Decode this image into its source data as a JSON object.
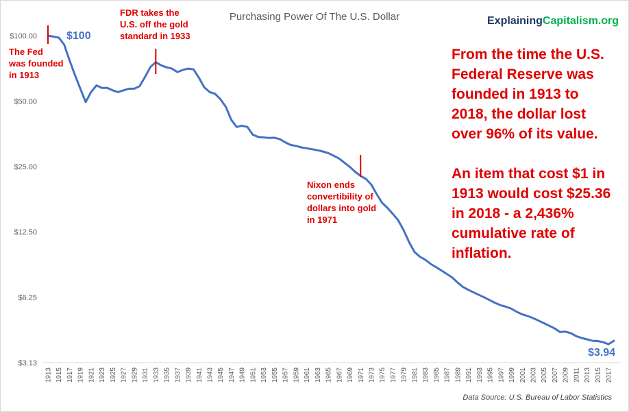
{
  "chart_data": {
    "type": "line",
    "title": "Purchasing Power Of The U.S. Dollar",
    "xlabel": "",
    "ylabel": "",
    "y_scale": "log2",
    "ylim": [
      3.13,
      125
    ],
    "y_ticks": [
      "$100.00",
      "$50.00",
      "$25.00",
      "$12.50",
      "$6.25",
      "$3.13"
    ],
    "y_tick_values": [
      100,
      50,
      25,
      12.5,
      6.25,
      3.125
    ],
    "grid": false,
    "series": [
      {
        "color": "#4472c4",
        "x": [
          1913,
          1914,
          1915,
          1916,
          1917,
          1918,
          1919,
          1920,
          1921,
          1922,
          1923,
          1924,
          1925,
          1926,
          1927,
          1928,
          1929,
          1930,
          1931,
          1932,
          1933,
          1934,
          1935,
          1936,
          1937,
          1938,
          1939,
          1940,
          1941,
          1942,
          1943,
          1944,
          1945,
          1946,
          1947,
          1948,
          1949,
          1950,
          1951,
          1952,
          1953,
          1954,
          1955,
          1956,
          1957,
          1958,
          1959,
          1960,
          1961,
          1962,
          1963,
          1964,
          1965,
          1966,
          1967,
          1968,
          1969,
          1970,
          1971,
          1972,
          1973,
          1974,
          1975,
          1976,
          1977,
          1978,
          1979,
          1980,
          1981,
          1982,
          1983,
          1984,
          1985,
          1986,
          1987,
          1988,
          1989,
          1990,
          1991,
          1992,
          1993,
          1994,
          1995,
          1996,
          1997,
          1998,
          1999,
          2000,
          2001,
          2002,
          2003,
          2004,
          2005,
          2006,
          2007,
          2008,
          2009,
          2010,
          2011,
          2012,
          2013,
          2014,
          2015,
          2016,
          2017,
          2018
        ],
        "y": [
          100,
          99,
          98,
          91,
          77,
          66,
          57,
          49.5,
          55,
          59,
          57.5,
          57.5,
          56,
          55,
          56,
          57,
          57,
          58.5,
          64.5,
          71.7,
          75.5,
          73,
          71.5,
          70.5,
          68,
          69.5,
          70.5,
          70,
          64,
          57.8,
          55,
          54,
          51,
          47,
          41,
          38,
          38.5,
          38,
          35,
          34.2,
          34,
          33.8,
          33.9,
          33.4,
          32.3,
          31.4,
          31.1,
          30.6,
          30.3,
          30,
          29.7,
          29.3,
          28.8,
          28,
          27.2,
          26,
          24.9,
          23.6,
          22.6,
          21.9,
          20.6,
          18.6,
          17,
          16.1,
          15.1,
          14.1,
          12.7,
          11.2,
          10.1,
          9.6,
          9.3,
          8.9,
          8.6,
          8.3,
          8,
          7.7,
          7.3,
          6.97,
          6.76,
          6.57,
          6.4,
          6.23,
          6.05,
          5.88,
          5.74,
          5.65,
          5.53,
          5.35,
          5.21,
          5.12,
          5.01,
          4.88,
          4.75,
          4.62,
          4.49,
          4.32,
          4.34,
          4.27,
          4.14,
          4.06,
          4.0,
          3.94,
          3.93,
          3.88,
          3.8,
          3.94
        ]
      }
    ],
    "annotations": [
      {
        "year": 1913,
        "lines": [
          "The Fed",
          "was founded",
          "in 1913"
        ]
      },
      {
        "year": 1933,
        "lines": [
          "FDR takes the",
          "U.S. off the gold",
          "standard in 1933"
        ]
      },
      {
        "year": 1971,
        "lines": [
          "Nixon ends",
          "convertibility of",
          "dollars into gold",
          "in 1971"
        ]
      }
    ],
    "start_label": "$100",
    "end_label": "$3.94",
    "summary": {
      "paragraph1": [
        "From the time the U.S.",
        "Federal Reserve was",
        "founded in 1913 to",
        "2018, the dollar lost",
        "over 96% of its value."
      ],
      "paragraph2": [
        "An item that cost $1 in",
        "1913 would cost $25.36",
        "in 2018 - a 2,436%",
        "cumulative rate of",
        "inflation."
      ]
    },
    "source": "Data Source: U.S. Bureau of Labor Statistics"
  },
  "brand": {
    "part1": "Explaining",
    "part2": "Capitalism.org"
  },
  "colors": {
    "line": "#4472c4",
    "annotation": "#e00000",
    "brand_dark": "#1f3864",
    "brand_green": "#00b050"
  }
}
